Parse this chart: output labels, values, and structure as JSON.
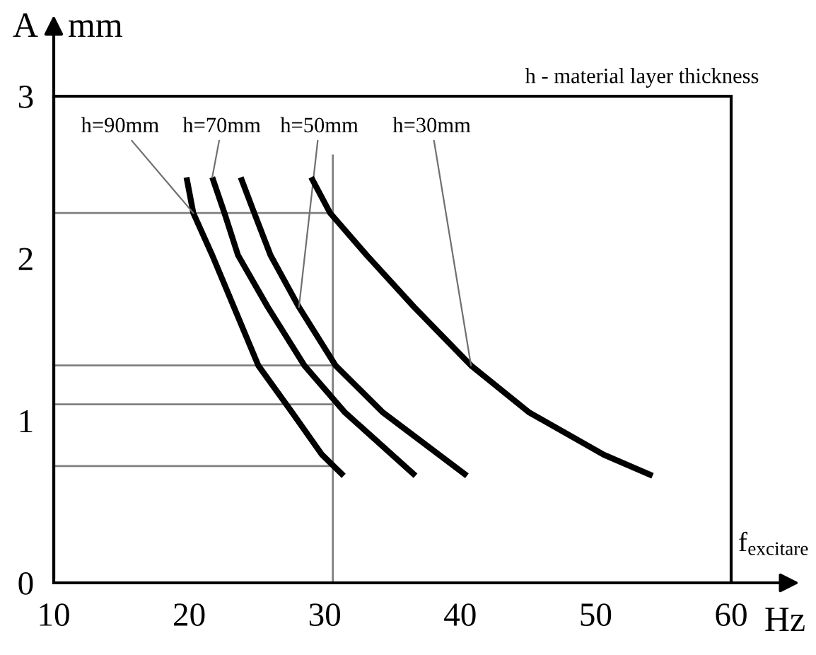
{
  "chart_data": {
    "type": "line",
    "xlabel": "Hz",
    "ylabel": "A",
    "xlim": [
      10,
      60
    ],
    "ylim": [
      0,
      3
    ],
    "xticks": [
      10,
      20,
      30,
      40,
      50,
      60
    ],
    "yticks": [
      0,
      1,
      2,
      3
    ],
    "grid": false,
    "legend": false,
    "marker": "none",
    "line_style": "solid",
    "annotations": [
      "mm",
      "f$_{excitare}$",
      "h - material layer thickness"
    ],
    "series": [
      {
        "name": "h=90mm",
        "color": "#000000",
        "x": [
          19.8,
          20.3,
          21.7,
          23.3,
          25.1,
          27.6,
          29.8,
          31.4
        ],
        "values": [
          2.5,
          2.28,
          2.02,
          1.7,
          1.34,
          1.05,
          0.79,
          0.66
        ]
      },
      {
        "name": "h=70mm",
        "color": "#000000",
        "x": [
          21.7,
          22.6,
          23.6,
          25.8,
          28.5,
          31.5,
          36.7
        ],
        "values": [
          2.5,
          2.28,
          2.02,
          1.7,
          1.34,
          1.05,
          0.66
        ]
      },
      {
        "name": "h=50mm",
        "color": "#000000",
        "x": [
          23.8,
          24.8,
          26.0,
          28.1,
          30.8,
          34.3,
          40.5
        ],
        "values": [
          2.5,
          2.28,
          2.02,
          1.7,
          1.34,
          1.05,
          0.66
        ]
      },
      {
        "name": "h=30mm",
        "color": "#000000",
        "x": [
          29.0,
          30.4,
          33.1,
          36.6,
          40.8,
          45.1,
          50.6,
          54.2
        ],
        "values": [
          2.5,
          2.28,
          2.02,
          1.7,
          1.34,
          1.05,
          0.79,
          0.66
        ]
      },
      {
        "color": "#808080",
        "x": [
          10,
          30.6
        ],
        "values": [
          2.28,
          2.28
        ]
      },
      {
        "color": "#808080",
        "x": [
          10,
          30.6
        ],
        "values": [
          1.34,
          1.34
        ]
      },
      {
        "color": "#808080",
        "x": [
          10,
          30.6
        ],
        "values": [
          1.1,
          1.1
        ]
      },
      {
        "color": "#808080",
        "x": [
          10,
          30.6
        ],
        "values": [
          0.72,
          0.72
        ]
      },
      {
        "color": "#808080",
        "x": [
          30.6,
          30.6
        ],
        "values": [
          0,
          2.64
        ]
      }
    ]
  }
}
